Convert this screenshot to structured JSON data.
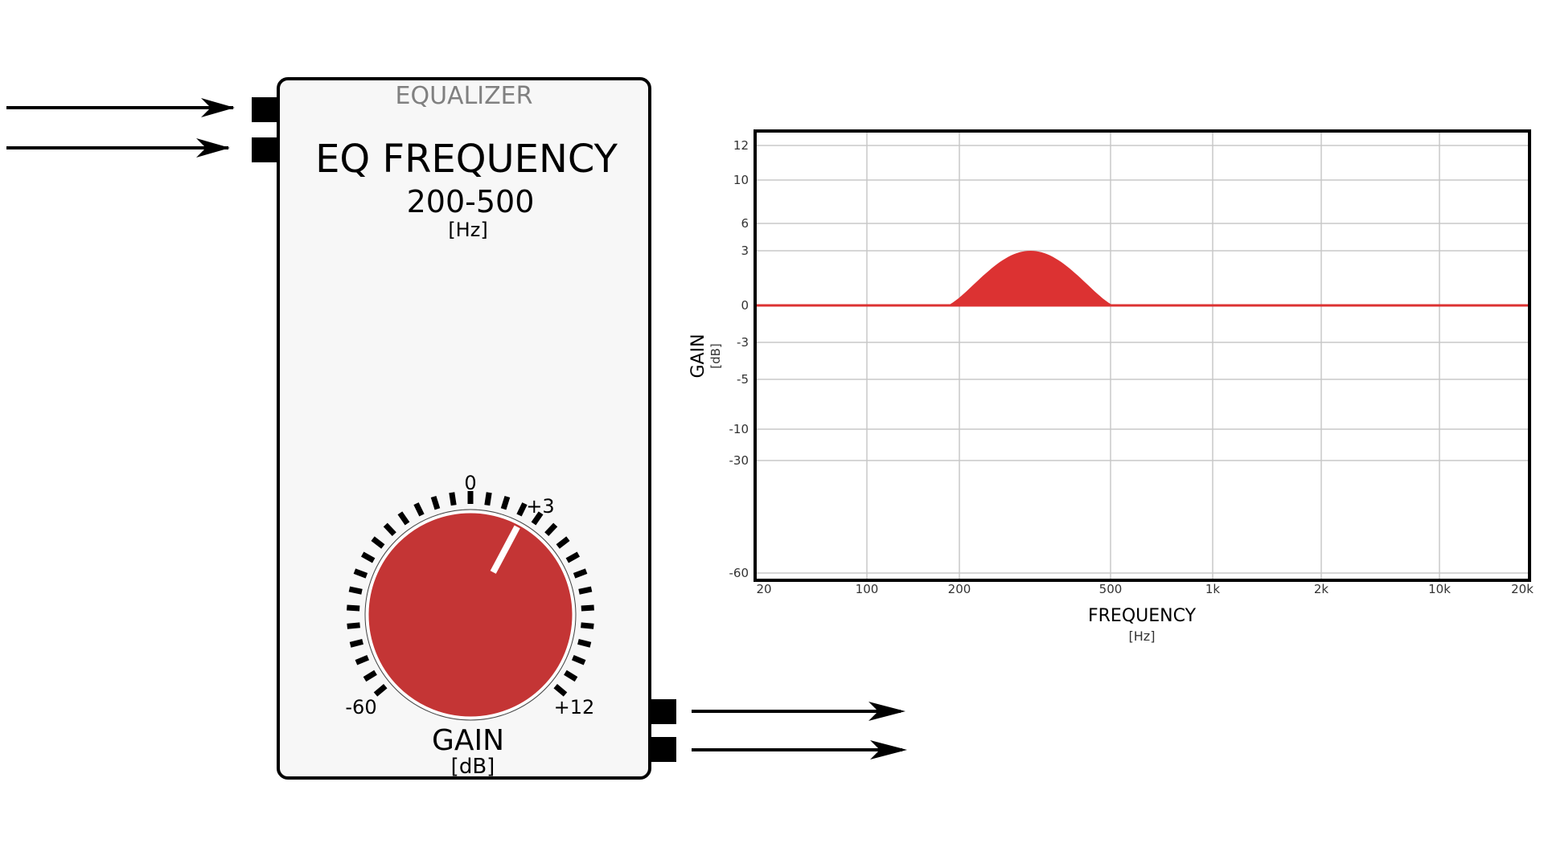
{
  "module": {
    "header": "EQUALIZER",
    "title": "EQ FREQUENCY",
    "range": "200-500",
    "range_unit": "[Hz]",
    "knob": {
      "label": "GAIN",
      "unit": "[dB]",
      "color": "#c43535",
      "marks": {
        "top": "0",
        "upper_right": "+3",
        "min": "-60",
        "max": "+12"
      },
      "value_db": 3
    }
  },
  "chart_data": {
    "type": "area",
    "title": "",
    "xlabel": "FREQUENCY",
    "xunit": "[Hz]",
    "ylabel": "GAIN",
    "yunit": "[dB]",
    "x_ticks": [
      "20",
      "100",
      "200",
      "500",
      "1k",
      "2k",
      "10k",
      "20k"
    ],
    "y_ticks": [
      "12",
      "10",
      "6",
      "3",
      "0",
      "-3",
      "-5",
      "-10",
      "-30",
      "-60"
    ],
    "grid": true,
    "series": [
      {
        "color": "#dc3232",
        "band_hz": [
          200,
          500
        ],
        "peak_db": 3,
        "baseline_db": 0
      }
    ]
  }
}
